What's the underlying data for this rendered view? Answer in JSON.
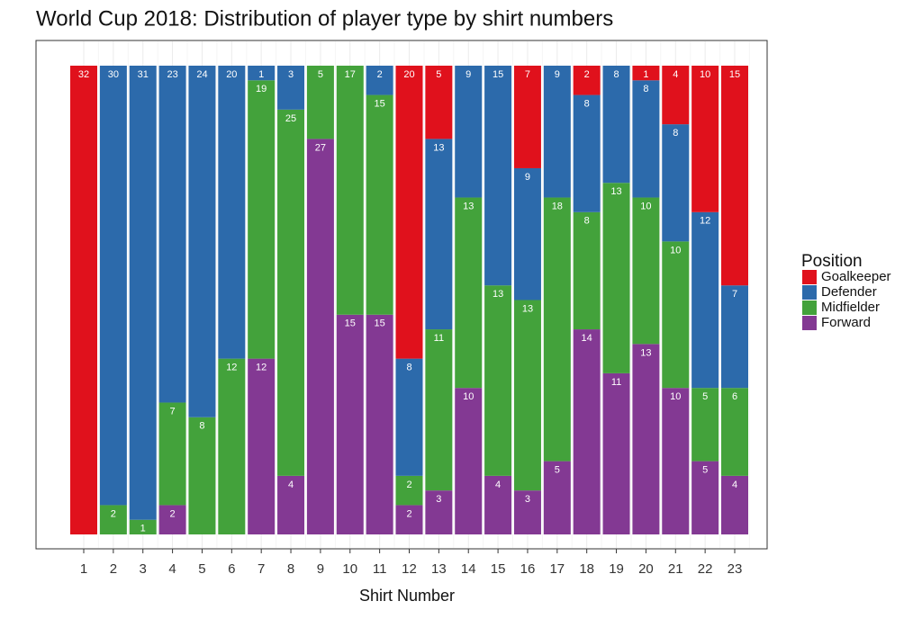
{
  "chart_data": {
    "type": "stacked-fill-bar",
    "title": "World Cup 2018: Distribution of player type by shirt numbers",
    "x_label": "Shirt Number",
    "legend_title": "Position",
    "legend_position": "right",
    "categories": [
      "1",
      "2",
      "3",
      "4",
      "5",
      "6",
      "7",
      "8",
      "9",
      "10",
      "11",
      "12",
      "13",
      "14",
      "15",
      "16",
      "17",
      "18",
      "19",
      "20",
      "21",
      "22",
      "23"
    ],
    "series": [
      {
        "name": "Goalkeeper",
        "color": "#e0111c",
        "values": [
          32,
          0,
          0,
          0,
          0,
          0,
          0,
          0,
          0,
          0,
          0,
          20,
          5,
          0,
          0,
          7,
          0,
          2,
          0,
          1,
          4,
          10,
          15
        ]
      },
      {
        "name": "Defender",
        "color": "#2c6aab",
        "values": [
          0,
          30,
          31,
          23,
          24,
          20,
          1,
          3,
          0,
          0,
          2,
          8,
          13,
          9,
          15,
          9,
          9,
          8,
          8,
          8,
          8,
          12,
          7
        ]
      },
      {
        "name": "Midfielder",
        "color": "#43a23b",
        "values": [
          0,
          2,
          1,
          7,
          8,
          12,
          19,
          25,
          5,
          17,
          15,
          2,
          11,
          13,
          13,
          13,
          18,
          8,
          13,
          10,
          10,
          5,
          6
        ]
      },
      {
        "name": "Forward",
        "color": "#833993",
        "values": [
          0,
          0,
          0,
          2,
          0,
          0,
          12,
          4,
          27,
          15,
          15,
          2,
          3,
          10,
          4,
          3,
          5,
          14,
          11,
          13,
          10,
          5,
          4
        ]
      }
    ]
  }
}
